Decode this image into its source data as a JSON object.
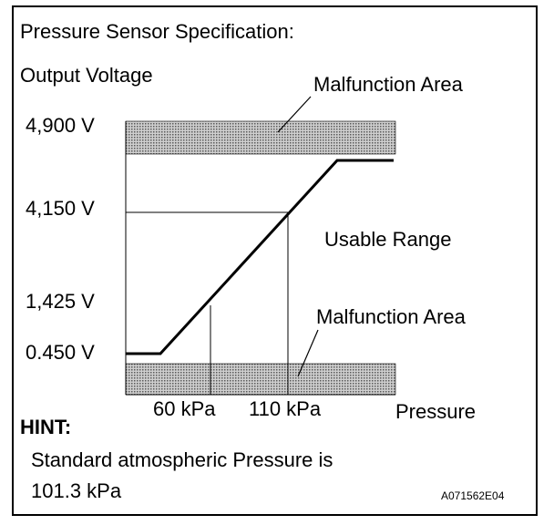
{
  "title": "Pressure Sensor Specification:",
  "y_axis_label": "Output Voltage",
  "x_axis_label": "Pressure",
  "y_ticks": [
    "4,900 V",
    "4,150 V",
    "1,425 V",
    "0.450 V"
  ],
  "x_ticks": [
    "60 kPa",
    "110 kPa"
  ],
  "malfunction_top_label": "Malfunction Area",
  "malfunction_bottom_label": "Malfunction Area",
  "usable_range_label": "Usable Range",
  "hint_title": "HINT:",
  "hint_line1": "Standard atmospheric Pressure is",
  "hint_line2": "101.3 kPa",
  "figure_code": "A071562E04",
  "colors": {
    "line": "#000000",
    "hatch_fill": "#9a9a9a",
    "background": "#ffffff"
  }
}
